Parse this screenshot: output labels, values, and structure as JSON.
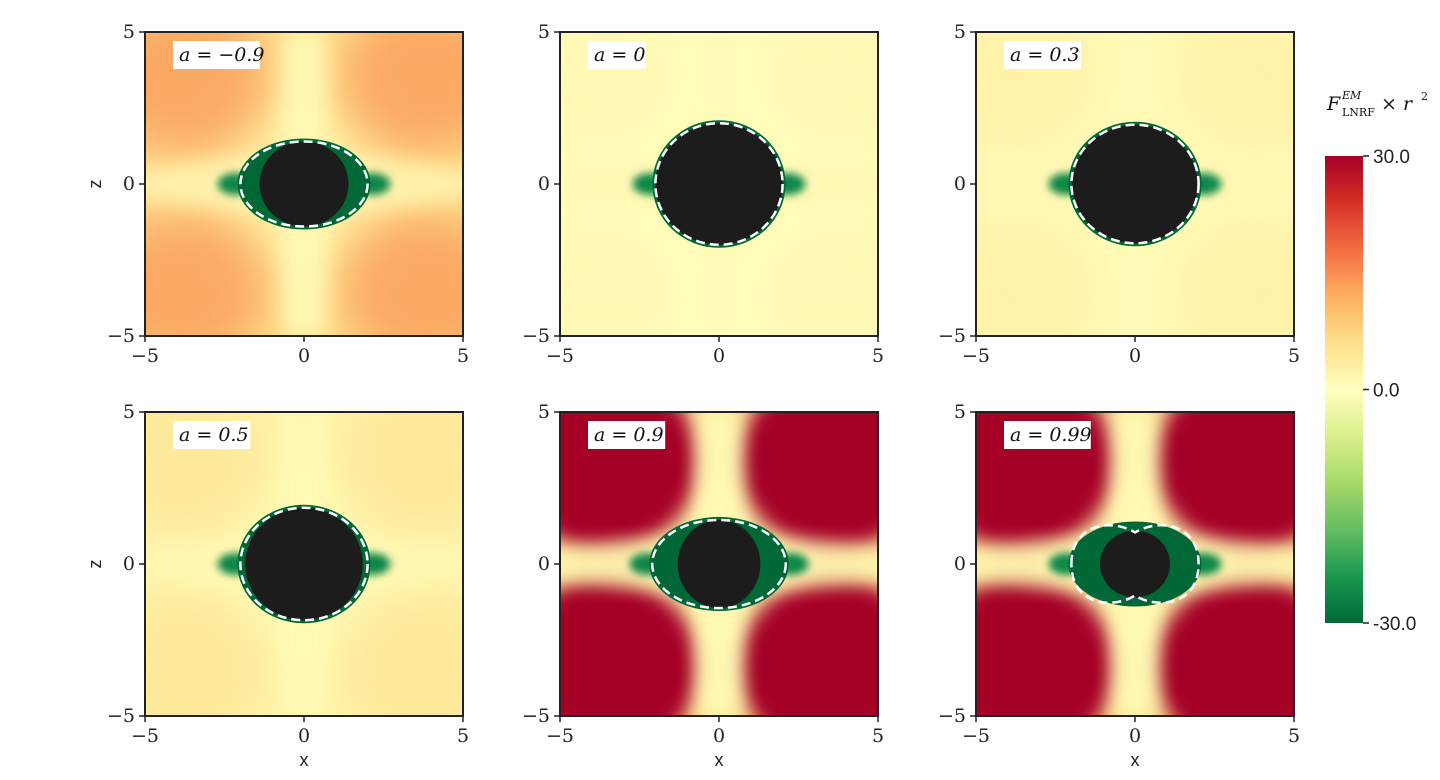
{
  "chart_data": {
    "type": "heatmap",
    "colormap": "RdYlGn (reversed)",
    "colorbar": {
      "title": "F",
      "title_sup": "EM",
      "title_sub": "LNRF",
      "title_suffix": "× r",
      "title_pow": "2",
      "range": [
        -30.0,
        30.0
      ],
      "ticks": [
        "30.0",
        "0.0",
        "-30.0"
      ],
      "colors": [
        "#a50026",
        "#d73027",
        "#f46d43",
        "#fdae61",
        "#fee08b",
        "#ffffbf",
        "#d9ef8b",
        "#a6d96a",
        "#66bd63",
        "#1a9850",
        "#006837"
      ]
    },
    "xlabel": "x",
    "ylabel": "z",
    "xlim": [
      -5,
      5
    ],
    "ylim": [
      -5,
      5
    ],
    "x_ticks": [
      "−5",
      "0",
      "5"
    ],
    "y_ticks": [
      "5",
      "0",
      "−5"
    ],
    "panels": [
      {
        "label": "a = −0.9",
        "spin": -0.9,
        "outer_rx": 2.0,
        "outer_rz": 1.4,
        "inner_rx": 1.4,
        "inner_rz": 1.4,
        "background_value": 8,
        "lobe_value": 14,
        "notch": false
      },
      {
        "label": "a = 0",
        "spin": 0.0,
        "outer_rx": 2.0,
        "outer_rz": 2.0,
        "inner_rx": 2.0,
        "inner_rz": 2.0,
        "background_value": 0.5,
        "lobe_value": 1.5,
        "notch": false
      },
      {
        "label": "a = 0.3",
        "spin": 0.3,
        "outer_rx": 2.0,
        "outer_rz": 1.95,
        "inner_rx": 1.97,
        "inner_rz": 1.95,
        "background_value": 1.5,
        "lobe_value": 3,
        "notch": false
      },
      {
        "label": "a = 0.5",
        "spin": 0.5,
        "outer_rx": 2.0,
        "outer_rz": 1.85,
        "inner_rx": 1.85,
        "inner_rz": 1.85,
        "background_value": 3,
        "lobe_value": 5,
        "notch": false
      },
      {
        "label": "a = 0.9",
        "spin": 0.9,
        "outer_rx": 2.1,
        "outer_rz": 1.45,
        "inner_rx": 1.3,
        "inner_rz": 1.45,
        "background_value": 6,
        "lobe_value": 30,
        "notch": false
      },
      {
        "label": "a = 0.99",
        "spin": 0.99,
        "outer_rx": 2.0,
        "outer_rz": 1.3,
        "inner_rx": 1.1,
        "inner_rz": 1.1,
        "background_value": 6,
        "lobe_value": 30,
        "notch": true
      }
    ]
  }
}
